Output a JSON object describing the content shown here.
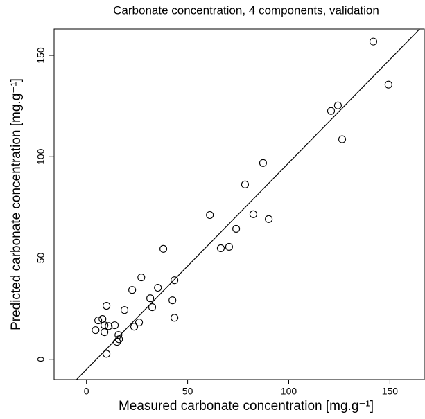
{
  "chart_data": {
    "type": "scatter",
    "title": "Carbonate concentration, 4 components, validation",
    "x_label": "Measured carbonate concentration [mg.g⁻¹]",
    "y_label": "Predicted carbonate concentration [mg.g⁻¹]",
    "xlim": [
      -16,
      167
    ],
    "ylim": [
      -10,
      163
    ],
    "xticks": [
      0,
      50,
      100,
      150
    ],
    "yticks": [
      0,
      50,
      100,
      150
    ],
    "color": "#000000",
    "fit_line": {
      "intercept": -5,
      "slope": 1.02
    },
    "x": [
      141.8,
      149.3,
      120.9,
      124.3,
      126.4,
      87.3,
      78.4,
      61.0,
      82.5,
      90.1,
      74.0,
      70.5,
      66.4,
      38.0,
      27.1,
      43.5,
      35.3,
      22.6,
      31.5,
      42.5,
      32.5,
      9.9,
      7.9,
      5.8,
      18.8,
      4.5,
      8.9,
      11.0,
      14.0,
      8.9,
      15.8,
      16.1,
      15.1,
      26.0,
      23.6,
      43.5,
      9.9
    ],
    "values": [
      156.8,
      135.6,
      122.6,
      125.3,
      108.6,
      96.9,
      86.3,
      71.2,
      71.6,
      69.2,
      64.4,
      55.5,
      54.8,
      54.5,
      40.4,
      39.0,
      35.3,
      34.2,
      30.1,
      29.1,
      25.7,
      26.4,
      19.9,
      19.2,
      24.3,
      14.4,
      16.8,
      16.4,
      16.8,
      13.4,
      12.0,
      9.9,
      8.6,
      18.2,
      16.1,
      20.5,
      2.7
    ]
  }
}
